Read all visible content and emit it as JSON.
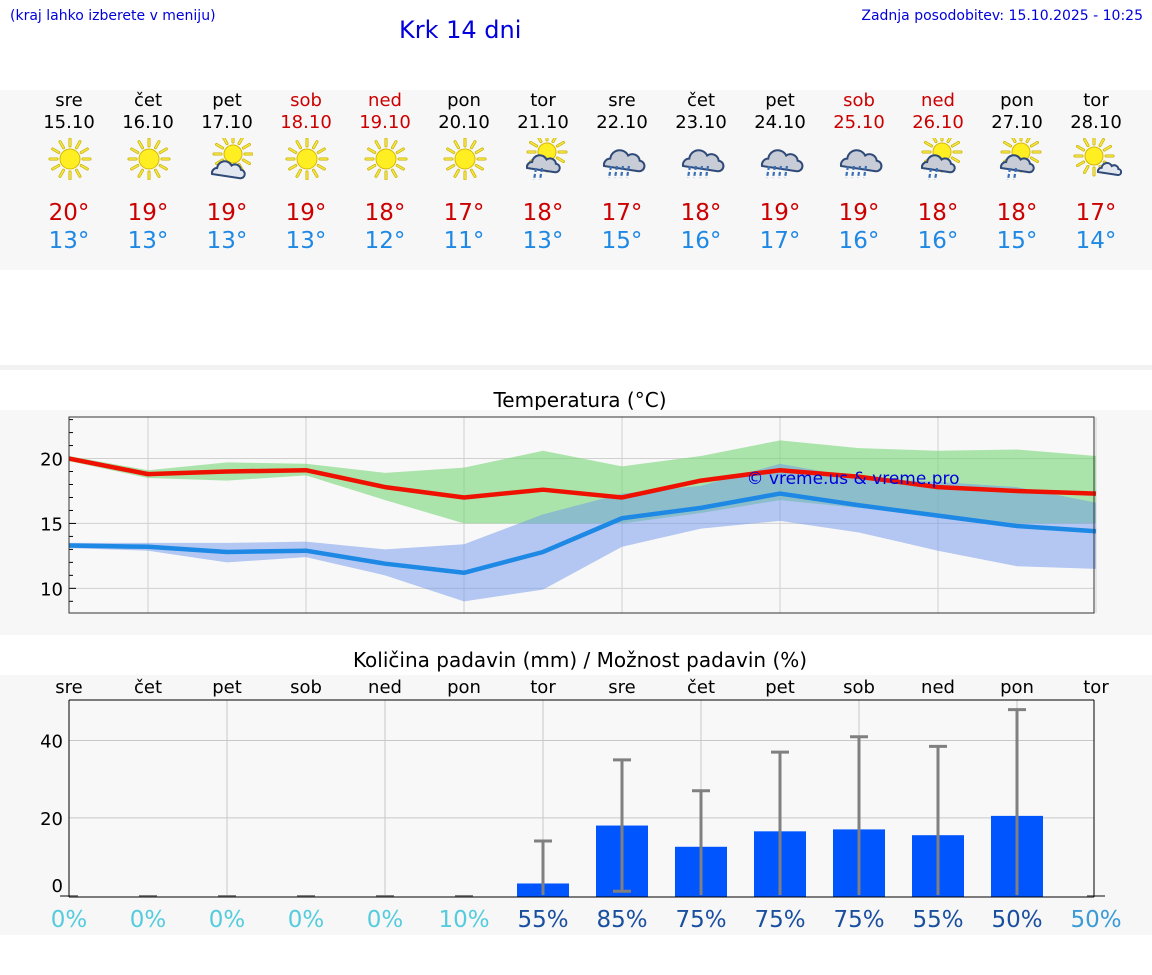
{
  "header": {
    "menu_hint": "(kraj lahko izberete v meniju)",
    "title": "Krk 14 dni",
    "updated": "Zadnja posodobitev: 15.10.2025 - 10:25"
  },
  "colors": {
    "max": "#cc0000",
    "min": "#1e88e5",
    "weekend": "#cc0000",
    "bar": "#0055ff",
    "prob_dry": "#55ccdd",
    "prob_wet": "#1a4fa0"
  },
  "days": [
    {
      "name": "sre",
      "date": "15.10",
      "weekend": false,
      "icon": "sun-icon",
      "tmax": "20°",
      "tmin": "13°"
    },
    {
      "name": "čet",
      "date": "16.10",
      "weekend": false,
      "icon": "sun-icon",
      "tmax": "19°",
      "tmin": "13°"
    },
    {
      "name": "pet",
      "date": "17.10",
      "weekend": false,
      "icon": "sun-cloud-icon",
      "tmax": "19°",
      "tmin": "13°"
    },
    {
      "name": "sob",
      "date": "18.10",
      "weekend": true,
      "icon": "sun-icon",
      "tmax": "19°",
      "tmin": "13°"
    },
    {
      "name": "ned",
      "date": "19.10",
      "weekend": true,
      "icon": "sun-icon",
      "tmax": "18°",
      "tmin": "12°"
    },
    {
      "name": "pon",
      "date": "20.10",
      "weekend": false,
      "icon": "sun-icon",
      "tmax": "17°",
      "tmin": "11°"
    },
    {
      "name": "tor",
      "date": "21.10",
      "weekend": false,
      "icon": "sun-cloud-rain-icon",
      "tmax": "18°",
      "tmin": "13°"
    },
    {
      "name": "sre",
      "date": "22.10",
      "weekend": false,
      "icon": "cloud-rain-icon",
      "tmax": "17°",
      "tmin": "15°"
    },
    {
      "name": "čet",
      "date": "23.10",
      "weekend": false,
      "icon": "cloud-rain-icon",
      "tmax": "18°",
      "tmin": "16°"
    },
    {
      "name": "pet",
      "date": "24.10",
      "weekend": false,
      "icon": "cloud-rain-icon",
      "tmax": "19°",
      "tmin": "17°"
    },
    {
      "name": "sob",
      "date": "25.10",
      "weekend": true,
      "icon": "cloud-rain-icon",
      "tmax": "19°",
      "tmin": "16°"
    },
    {
      "name": "ned",
      "date": "26.10",
      "weekend": true,
      "icon": "sun-cloud-rain-icon",
      "tmax": "18°",
      "tmin": "16°"
    },
    {
      "name": "pon",
      "date": "27.10",
      "weekend": false,
      "icon": "sun-cloud-rain-icon",
      "tmax": "18°",
      "tmin": "15°"
    },
    {
      "name": "tor",
      "date": "28.10",
      "weekend": false,
      "icon": "sun-small-cloud-icon",
      "tmax": "17°",
      "tmin": "14°"
    }
  ],
  "chart_data": [
    {
      "type": "line",
      "title": "Temperatura (°C)",
      "watermark": "© vreme.us & vreme.pro",
      "ylim": [
        8.1,
        23.2
      ],
      "yticks": [
        10,
        15,
        20
      ],
      "x": [
        0,
        1,
        2,
        3,
        4,
        5,
        6,
        7,
        8,
        9,
        10,
        11,
        12,
        13
      ],
      "series": [
        {
          "name": "max",
          "color": "#ee1100",
          "values": [
            20.0,
            18.8,
            19.0,
            19.1,
            17.8,
            17.0,
            17.6,
            17.0,
            18.3,
            19.1,
            18.6,
            17.8,
            17.5,
            17.3
          ],
          "band_low": [
            19.8,
            18.5,
            18.3,
            18.7,
            16.8,
            15.0,
            15.0,
            15.0,
            15.8,
            16.8,
            16.2,
            15.7,
            15.0,
            15.0
          ],
          "band_high": [
            20.2,
            19.1,
            19.7,
            19.6,
            18.9,
            19.3,
            20.6,
            19.4,
            20.2,
            21.4,
            20.8,
            20.6,
            20.7,
            20.2
          ]
        },
        {
          "name": "min",
          "color": "#1e88e5",
          "values": [
            13.3,
            13.2,
            12.8,
            12.9,
            11.9,
            11.2,
            12.8,
            15.4,
            16.2,
            17.3,
            16.4,
            15.6,
            14.8,
            14.4
          ],
          "band_low": [
            13.1,
            12.9,
            12.0,
            12.4,
            11.0,
            9.0,
            9.9,
            13.2,
            14.6,
            15.2,
            14.3,
            12.9,
            11.7,
            11.5
          ],
          "band_high": [
            13.5,
            13.5,
            13.5,
            13.6,
            13.0,
            13.4,
            15.7,
            17.3,
            17.9,
            19.6,
            18.5,
            18.2,
            17.8,
            16.6
          ]
        }
      ]
    },
    {
      "type": "bar",
      "title": "Količina padavin (mm) / Možnost padavin (%)",
      "categories": [
        "sre",
        "čet",
        "pet",
        "sob",
        "ned",
        "pon",
        "tor",
        "sre",
        "čet",
        "pet",
        "sob",
        "ned",
        "pon",
        "tor"
      ],
      "values": [
        0,
        0,
        0,
        0,
        0,
        0,
        3,
        18,
        12.5,
        16.5,
        17,
        15.5,
        20.5,
        0
      ],
      "error_high": [
        0,
        0,
        0,
        0,
        0,
        0,
        14,
        35,
        27,
        37,
        41,
        38.5,
        48,
        0
      ],
      "error_low": [
        0,
        0,
        0,
        0,
        0,
        0,
        0,
        1,
        0,
        0,
        0,
        0,
        0,
        0
      ],
      "probability": [
        "0%",
        "0%",
        "0%",
        "0%",
        "0%",
        "10%",
        "55%",
        "85%",
        "75%",
        "75%",
        "75%",
        "55%",
        "50%",
        "50%"
      ],
      "ylim": [
        -0.5,
        50.5
      ],
      "yticks": [
        0,
        20,
        40
      ]
    }
  ]
}
